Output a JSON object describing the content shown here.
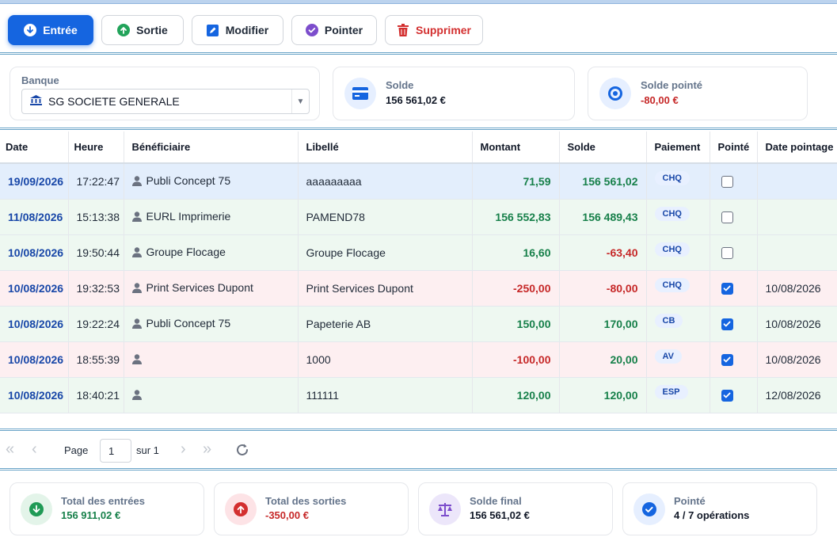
{
  "toolbar": {
    "entree": "Entrée",
    "sortie": "Sortie",
    "modifier": "Modifier",
    "pointer": "Pointer",
    "supprimer": "Supprimer"
  },
  "bank": {
    "label": "Banque",
    "selected": "SG SOCIETE GENERALE"
  },
  "solde": {
    "title": "Solde",
    "value": "156 561,02 €"
  },
  "solde_pointe": {
    "title": "Solde pointé",
    "value": "-80,00 €"
  },
  "table": {
    "headers": [
      "Date",
      "Heure",
      "Bénéficiaire",
      "Libellé",
      "Montant",
      "Solde",
      "Paiement",
      "Pointé",
      "Date pointage"
    ],
    "rows": [
      {
        "date": "19/09/2026",
        "heure": "17:22:47",
        "beneficiaire": "Publi Concept 75",
        "libelle": "aaaaaaaaa",
        "montant": "71,59",
        "solde": "156 561,02",
        "paiement": "CHQ",
        "pointe": false,
        "date_pointage": ""
      },
      {
        "date": "11/08/2026",
        "heure": "15:13:38",
        "beneficiaire": "EURL Imprimerie",
        "libelle": "PAMEND78",
        "montant": "156 552,83",
        "solde": "156 489,43",
        "paiement": "CHQ",
        "pointe": false,
        "date_pointage": ""
      },
      {
        "date": "10/08/2026",
        "heure": "19:50:44",
        "beneficiaire": "Groupe Flocage",
        "libelle": "Groupe Flocage",
        "montant": "16,60",
        "solde": "-63,40",
        "paiement": "CHQ",
        "pointe": false,
        "date_pointage": ""
      },
      {
        "date": "10/08/2026",
        "heure": "19:32:53",
        "beneficiaire": "Print Services Dupont",
        "libelle": "Print Services Dupont",
        "montant": "-250,00",
        "solde": "-80,00",
        "paiement": "CHQ",
        "pointe": true,
        "date_pointage": "10/08/2026"
      },
      {
        "date": "10/08/2026",
        "heure": "19:22:24",
        "beneficiaire": "Publi Concept 75",
        "libelle": "Papeterie AB",
        "montant": "150,00",
        "solde": "170,00",
        "paiement": "CB",
        "pointe": true,
        "date_pointage": "10/08/2026"
      },
      {
        "date": "10/08/2026",
        "heure": "18:55:39",
        "beneficiaire": "",
        "libelle": "1000",
        "montant": "-100,00",
        "solde": "20,00",
        "paiement": "AV",
        "pointe": true,
        "date_pointage": "10/08/2026"
      },
      {
        "date": "10/08/2026",
        "heure": "18:40:21",
        "beneficiaire": "",
        "libelle": "111111",
        "montant": "120,00",
        "solde": "120,00",
        "paiement": "ESP",
        "pointe": true,
        "date_pointage": "12/08/2026"
      }
    ]
  },
  "pager": {
    "page_label": "Page",
    "page_value": "1",
    "of_label": "sur 1"
  },
  "totals": {
    "entrees": {
      "title": "Total des entrées",
      "value": "156 911,02 €"
    },
    "sorties": {
      "title": "Total des sorties",
      "value": "-350,00 €"
    },
    "final": {
      "title": "Solde final",
      "value": "156 561,02 €"
    },
    "pointe": {
      "title": "Pointé",
      "value": "4 / 7 opérations"
    }
  },
  "colors": {
    "primary": "#1565e0",
    "positive": "#17804a",
    "negative": "#c62828",
    "danger": "#d32f2f"
  }
}
